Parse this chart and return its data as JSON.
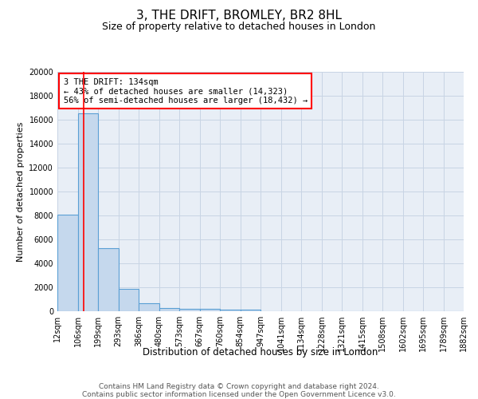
{
  "title": "3, THE DRIFT, BROMLEY, BR2 8HL",
  "subtitle": "Size of property relative to detached houses in London",
  "xlabel": "Distribution of detached houses by size in London",
  "ylabel": "Number of detached properties",
  "bin_edges": [
    12,
    106,
    199,
    293,
    386,
    480,
    573,
    667,
    760,
    854,
    947,
    1041,
    1134,
    1228,
    1321,
    1415,
    1508,
    1602,
    1695,
    1789,
    1882
  ],
  "bar_heights": [
    8100,
    16500,
    5300,
    1850,
    700,
    290,
    210,
    180,
    160,
    120,
    0,
    0,
    0,
    0,
    0,
    0,
    0,
    0,
    0,
    0
  ],
  "bar_color": "#c5d8ed",
  "bar_edge_color": "#5a9fd4",
  "bar_edge_width": 0.8,
  "grid_color": "#c8d4e4",
  "background_color": "#e8eef6",
  "red_line_x": 134,
  "annotation_text": "3 THE DRIFT: 134sqm\n← 43% of detached houses are smaller (14,323)\n56% of semi-detached houses are larger (18,432) →",
  "annotation_box_color": "white",
  "annotation_box_edge_color": "red",
  "ylim": [
    0,
    20000
  ],
  "yticks": [
    0,
    2000,
    4000,
    6000,
    8000,
    10000,
    12000,
    14000,
    16000,
    18000,
    20000
  ],
  "footer_line1": "Contains HM Land Registry data © Crown copyright and database right 2024.",
  "footer_line2": "Contains public sector information licensed under the Open Government Licence v3.0.",
  "title_fontsize": 11,
  "subtitle_fontsize": 9,
  "xlabel_fontsize": 8.5,
  "ylabel_fontsize": 8,
  "tick_fontsize": 7
}
